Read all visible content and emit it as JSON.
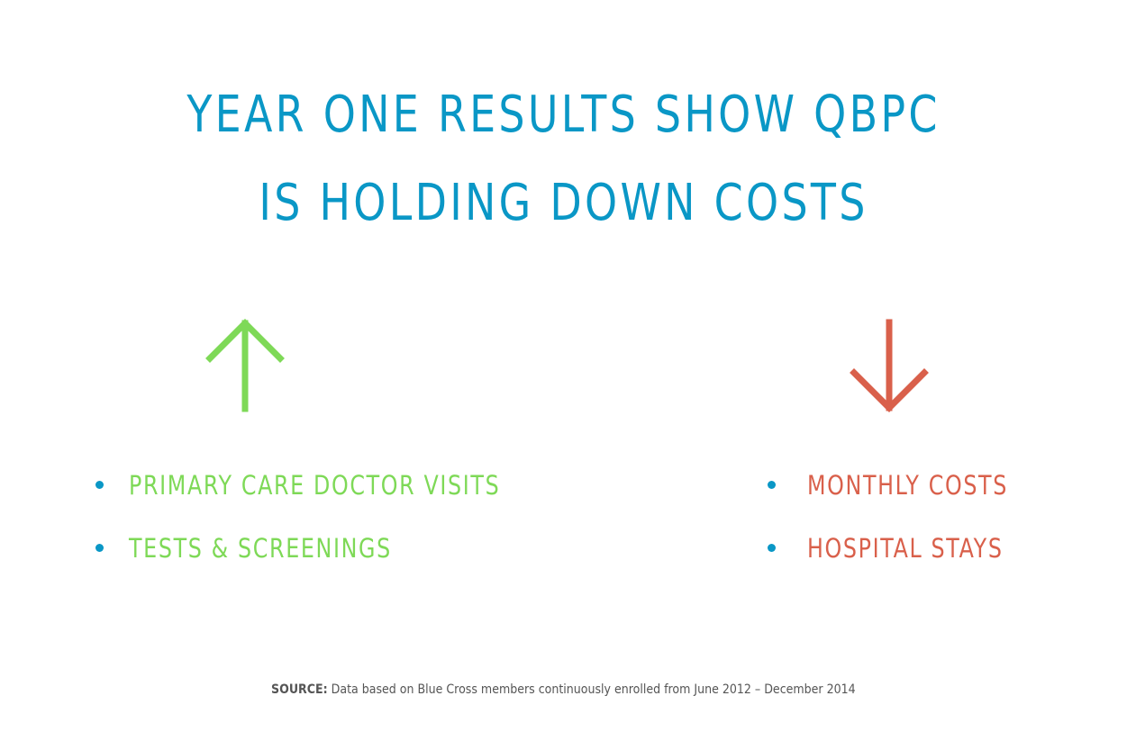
{
  "colors": {
    "title": "#0a97c6",
    "bullet": "#0a97c6",
    "increase": "#7ed957",
    "decrease": "#d9604b",
    "source_text": "#555555"
  },
  "title": {
    "line1": "YEAR ONE RESULTS SHOW QBPC",
    "line2": "IS HOLDING DOWN COSTS"
  },
  "increase": {
    "icon": "arrow-up-icon",
    "items": [
      "PRIMARY CARE DOCTOR VISITS",
      "TESTS & SCREENINGS"
    ]
  },
  "decrease": {
    "icon": "arrow-down-icon",
    "items": [
      "MONTHLY COSTS",
      "HOSPITAL STAYS"
    ]
  },
  "source": {
    "label": "SOURCE:",
    "text": "Data based on Blue Cross members continuously enrolled from June 2012 – December 2014"
  }
}
